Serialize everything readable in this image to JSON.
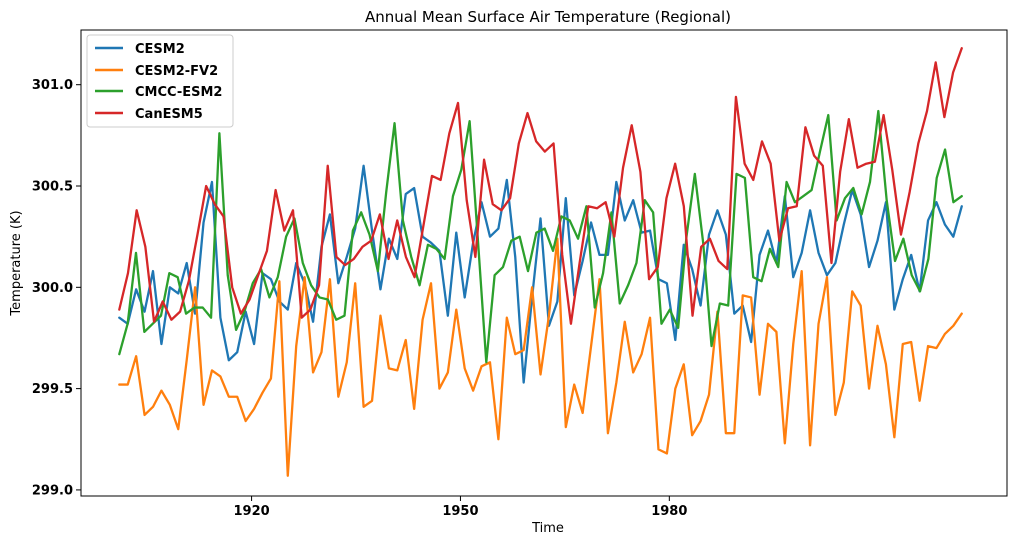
{
  "chart_data": {
    "type": "line",
    "title": "Annual Mean Surface Air Temperature (Regional)",
    "xlabel": "Time",
    "ylabel": "Temperature (K)",
    "xlim": [
      1895.5,
      2028.5
    ],
    "ylim": [
      298.97,
      301.27
    ],
    "x_ticks": [
      1920,
      1950,
      1980
    ],
    "y_ticks": [
      299.0,
      299.5,
      300.0,
      300.5,
      301.0
    ],
    "y_tick_labels": [
      "299.0",
      "299.5",
      "300.0",
      "300.5",
      "301.0"
    ],
    "grid": false,
    "legend_position": "top-left",
    "x_start": 1901,
    "x_end": 2022,
    "series": [
      {
        "name": "CESM2",
        "color": "#1f77b4",
        "values": [
          299.85,
          299.82,
          299.99,
          299.88,
          300.08,
          299.72,
          300.0,
          299.97,
          300.12,
          299.87,
          300.32,
          300.52,
          299.85,
          299.64,
          299.68,
          299.88,
          299.72,
          300.07,
          300.04,
          299.93,
          299.89,
          300.12,
          300.02,
          299.83,
          300.2,
          300.36,
          300.02,
          300.15,
          300.29,
          300.6,
          300.28,
          299.99,
          300.24,
          300.14,
          300.46,
          300.49,
          300.25,
          300.22,
          300.18,
          299.86,
          300.27,
          299.95,
          300.22,
          300.42,
          300.25,
          300.29,
          300.53,
          300.15,
          299.53,
          299.95,
          300.34,
          299.81,
          299.93,
          300.44,
          299.96,
          300.13,
          300.32,
          300.16,
          300.16,
          300.52,
          300.33,
          300.43,
          300.27,
          300.28,
          300.04,
          300.02,
          299.74,
          300.21,
          300.09,
          299.91,
          300.26,
          300.38,
          300.26,
          299.87,
          299.91,
          299.73,
          300.16,
          300.28,
          300.12,
          300.45,
          300.05,
          300.17,
          300.38,
          300.17,
          300.06,
          300.12,
          300.31,
          300.48,
          300.36,
          300.1,
          300.23,
          300.42,
          299.89,
          300.04,
          300.16,
          299.98,
          300.33,
          300.42,
          300.31,
          300.25,
          300.4
        ]
      },
      {
        "name": "CESM2-FV2",
        "color": "#ff7f0e",
        "values": [
          299.52,
          299.52,
          299.66,
          299.37,
          299.41,
          299.49,
          299.42,
          299.3,
          299.64,
          300.0,
          299.42,
          299.59,
          299.56,
          299.46,
          299.46,
          299.34,
          299.4,
          299.48,
          299.55,
          300.03,
          299.07,
          299.71,
          300.05,
          299.58,
          299.68,
          300.04,
          299.46,
          299.63,
          300.02,
          299.41,
          299.44,
          299.86,
          299.6,
          299.59,
          299.74,
          299.4,
          299.84,
          300.02,
          299.5,
          299.58,
          299.89,
          299.6,
          299.49,
          299.61,
          299.63,
          299.25,
          299.85,
          299.67,
          299.69,
          300.0,
          299.57,
          299.86,
          300.24,
          299.31,
          299.52,
          299.38,
          299.71,
          300.04,
          299.28,
          299.53,
          299.83,
          299.58,
          299.67,
          299.85,
          299.2,
          299.18,
          299.5,
          299.62,
          299.27,
          299.34,
          299.47,
          299.88,
          299.28,
          299.28,
          299.96,
          299.95,
          299.47,
          299.82,
          299.78,
          299.23,
          299.72,
          300.08,
          299.22,
          299.82,
          300.05,
          299.37,
          299.53,
          299.98,
          299.91,
          299.5,
          299.81,
          299.62,
          299.26,
          299.72,
          299.73,
          299.44,
          299.71,
          299.7,
          299.77,
          299.81,
          299.87
        ]
      },
      {
        "name": "CMCC-ESM2",
        "color": "#2ca02c",
        "values": [
          299.67,
          299.82,
          300.17,
          299.78,
          299.82,
          299.86,
          300.07,
          300.05,
          299.87,
          299.9,
          299.9,
          299.85,
          300.76,
          300.06,
          299.79,
          299.88,
          300.02,
          300.09,
          299.95,
          300.05,
          300.25,
          300.34,
          300.12,
          300.01,
          299.95,
          299.94,
          299.84,
          299.86,
          300.28,
          300.37,
          300.26,
          300.08,
          300.47,
          300.81,
          300.33,
          300.15,
          300.01,
          300.21,
          300.19,
          300.14,
          300.45,
          300.58,
          300.82,
          300.23,
          299.63,
          300.06,
          300.1,
          300.23,
          300.25,
          300.08,
          300.27,
          300.29,
          300.18,
          300.35,
          300.33,
          300.24,
          300.4,
          299.9,
          300.07,
          300.37,
          299.92,
          300.01,
          300.12,
          300.43,
          300.37,
          299.82,
          299.89,
          299.8,
          300.25,
          300.56,
          300.22,
          299.71,
          299.92,
          299.91,
          300.56,
          300.54,
          300.05,
          300.03,
          300.19,
          300.1,
          300.52,
          300.42,
          300.45,
          300.48,
          300.67,
          300.85,
          300.33,
          300.44,
          300.49,
          300.36,
          300.52,
          300.87,
          300.43,
          300.13,
          300.24,
          300.06,
          299.98,
          300.14,
          300.54,
          300.68,
          300.42,
          300.45
        ]
      },
      {
        "name": "CanESM5",
        "color": "#d62728",
        "values": [
          299.89,
          300.07,
          300.38,
          300.2,
          299.83,
          299.93,
          299.84,
          299.88,
          300.03,
          300.26,
          300.5,
          300.41,
          300.35,
          300.0,
          299.87,
          299.94,
          300.06,
          300.18,
          300.48,
          300.28,
          300.38,
          299.85,
          299.89,
          300.01,
          300.6,
          300.15,
          300.11,
          300.14,
          300.2,
          300.23,
          300.36,
          300.14,
          300.33,
          300.15,
          300.05,
          300.3,
          300.55,
          300.53,
          300.76,
          300.91,
          300.43,
          300.15,
          300.63,
          300.41,
          300.38,
          300.44,
          300.71,
          300.86,
          300.72,
          300.67,
          300.71,
          300.16,
          299.82,
          300.12,
          300.4,
          300.39,
          300.42,
          300.25,
          300.59,
          300.8,
          300.57,
          300.04,
          300.1,
          300.44,
          300.61,
          300.4,
          299.86,
          300.2,
          300.24,
          300.13,
          300.09,
          300.94,
          300.61,
          300.53,
          300.72,
          300.61,
          300.23,
          300.39,
          300.4,
          300.79,
          300.65,
          300.6,
          300.12,
          300.57,
          300.83,
          300.59,
          300.61,
          300.62,
          300.85,
          300.58,
          300.26,
          300.47,
          300.71,
          300.87,
          301.11,
          300.84,
          301.06,
          301.18
        ]
      }
    ]
  }
}
